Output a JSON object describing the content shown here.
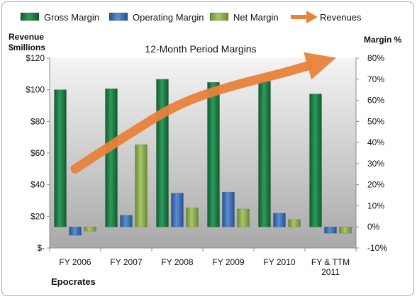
{
  "chart_data": {
    "type": "bar",
    "title": "12-Month Period Margins",
    "company": "Epocrates",
    "y_left_label": [
      "Revenue",
      "$millions"
    ],
    "y_right_label": "Margin %",
    "categories": [
      [
        "FY 2006"
      ],
      [
        "FY 2007"
      ],
      [
        "FY 2008"
      ],
      [
        "FY 2009"
      ],
      [
        "FY 2010"
      ],
      [
        "FY & TTM",
        "2011"
      ]
    ],
    "left_axis": {
      "min": 0,
      "max": 120,
      "step": 20,
      "tick_labels": [
        "$-",
        "$20",
        "$40",
        "$60",
        "$80",
        "$100",
        "$120"
      ]
    },
    "right_axis": {
      "min": -10,
      "max": 80,
      "step": 10,
      "tick_labels": [
        "-10%",
        "0%",
        "10%",
        "20%",
        "30%",
        "40%",
        "50%",
        "60%",
        "70%",
        "80%"
      ]
    },
    "grid": false,
    "legend_position": "top",
    "series": [
      {
        "name": "Gross Margin",
        "kind": "bar",
        "axis": "right",
        "color": "#1e7a46",
        "values": [
          65,
          65.5,
          70,
          68.5,
          69,
          63
        ]
      },
      {
        "name": "Operating Margin",
        "kind": "bar",
        "axis": "right",
        "color": "#3f6fb5",
        "values": [
          -4,
          5.5,
          16,
          16.5,
          6.5,
          -3
        ]
      },
      {
        "name": "Net Margin",
        "kind": "bar",
        "axis": "right",
        "color": "#8fae52",
        "values": [
          -2,
          39,
          9,
          8.5,
          3.5,
          -3
        ]
      },
      {
        "name": "Revenues",
        "kind": "trend-arrow",
        "axis": "left",
        "color": "#e8823a",
        "values": [
          50,
          71,
          91,
          102,
          110,
          122
        ]
      }
    ]
  }
}
